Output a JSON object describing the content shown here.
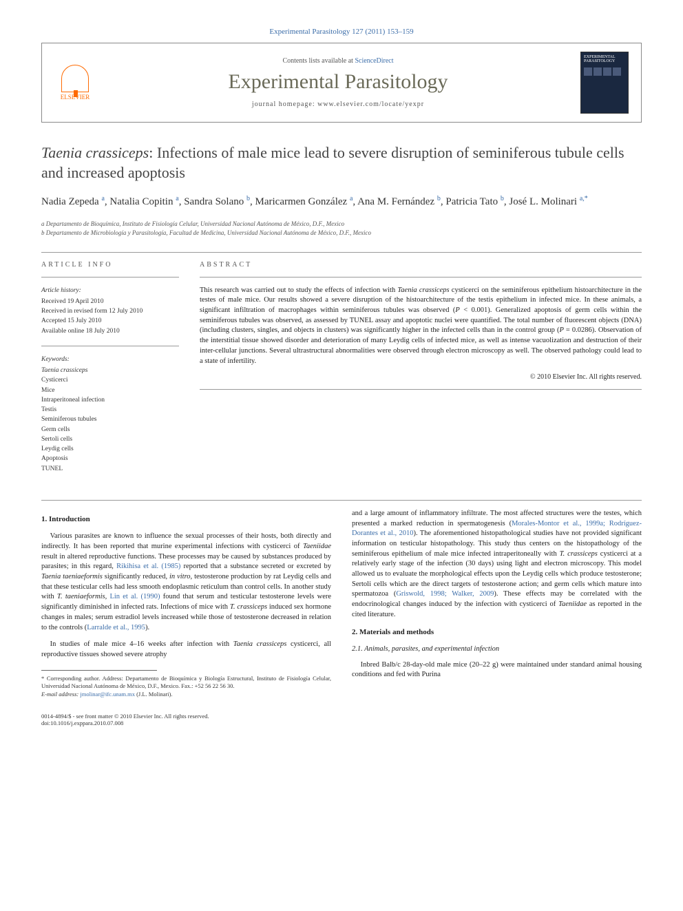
{
  "header": {
    "journal_citation": "Experimental Parasitology 127 (2011) 153–159",
    "contents_text": "Contents lists available at ",
    "contents_link": "ScienceDirect",
    "journal_title": "Experimental Parasitology",
    "homepage_text": "journal homepage: www.elsevier.com/locate/yexpr",
    "publisher": "ELSEVIER"
  },
  "article": {
    "title_html": "<em>Taenia crassiceps</em>: Infections of male mice lead to severe disruption of seminiferous tubule cells and increased apoptosis",
    "authors_html": "Nadia Zepeda <sup>a</sup>, Natalia Copitin <sup>a</sup>, Sandra Solano <sup>b</sup>, Maricarmen González <sup>a</sup>, Ana M. Fernández <sup>b</sup>, Patricia Tato <sup>b</sup>, José L. Molinari <sup>a,*</sup>",
    "affiliations": [
      "a Departamento de Bioquímica, Instituto de Fisiología Celular, Universidad Nacional Autónoma de México, D.F., Mexico",
      "b Departamento de Microbiología y Parasitología, Facultad de Medicina, Universidad Nacional Autónoma de México, D.F., Mexico"
    ]
  },
  "info": {
    "label": "ARTICLE INFO",
    "history_title": "Article history:",
    "history": [
      "Received 19 April 2010",
      "Received in revised form 12 July 2010",
      "Accepted 15 July 2010",
      "Available online 18 July 2010"
    ],
    "keywords_title": "Keywords:",
    "keywords": [
      "Taenia crassiceps",
      "Cysticerci",
      "Mice",
      "Intraperitoneal infection",
      "Testis",
      "Seminiferous tubules",
      "Germ cells",
      "Sertoli cells",
      "Leydig cells",
      "Apoptosis",
      "TUNEL"
    ]
  },
  "abstract": {
    "label": "ABSTRACT",
    "text_html": "This research was carried out to study the effects of infection with <em>Taenia crassiceps</em> cysticerci on the seminiferous epithelium histoarchitecture in the testes of male mice. Our results showed a severe disruption of the histoarchitecture of the testis epithelium in infected mice. In these animals, a significant infiltration of macrophages within seminiferous tubules was observed (<em>P</em> &lt; 0.001). Generalized apoptosis of germ cells within the seminiferous tubules was observed, as assessed by TUNEL assay and apoptotic nuclei were quantified. The total number of fluorescent objects (DNA) (including clusters, singles, and objects in clusters) was significantly higher in the infected cells than in the control group (<em>P</em> = 0.0286). Observation of the interstitial tissue showed disorder and deterioration of many Leydig cells of infected mice, as well as intense vacuolization and destruction of their inter-cellular junctions. Several ultrastructural abnormalities were observed through electron microscopy as well. The observed pathology could lead to a state of infertility.",
    "copyright": "© 2010 Elsevier Inc. All rights reserved."
  },
  "body": {
    "intro_heading": "1. Introduction",
    "intro_p1_html": "Various parasites are known to influence the sexual processes of their hosts, both directly and indirectly. It has been reported that murine experimental infections with cysticerci of <em>Taeniidae</em> result in altered reproductive functions. These processes may be caused by substances produced by parasites; in this regard, <span class='ref-link'>Rikihisa et al. (1985)</span> reported that a substance secreted or excreted by <em>Taenia taeniaeformis</em> significantly reduced, <em>in vitro</em>, testosterone production by rat Leydig cells and that these testicular cells had less smooth endoplasmic reticulum than control cells. In another study with <em>T. taeniaeformis</em>, <span class='ref-link'>Lin et al. (1990)</span> found that serum and testicular testosterone levels were significantly diminished in infected rats. Infections of mice with <em>T. crassiceps</em> induced sex hormone changes in males; serum estradiol levels increased while those of testosterone decreased in relation to the controls (<span class='ref-link'>Larralde et al., 1995</span>).",
    "intro_p2_html": "In studies of male mice 4–16 weeks after infection with <em>Taenia crassiceps</em> cysticerci, all reproductive tissues showed severe atrophy",
    "col2_p1_html": "and a large amount of inflammatory infiltrate. The most affected structures were the testes, which presented a marked reduction in spermatogenesis (<span class='ref-link'>Morales-Montor et al., 1999a; Rodríguez-Dorantes et al., 2010</span>). The aforementioned histopathological studies have not provided significant information on testicular histopathology. This study thus centers on the histopathology of the seminiferous epithelium of male mice infected intraperitoneally with <em>T. crassiceps</em> cysticerci at a relatively early stage of the infection (30 days) using light and electron microscopy. This model allowed us to evaluate the morphological effects upon the Leydig cells which produce testosterone; Sertoli cells which are the direct targets of testosterone action; and germ cells which mature into spermatozoa (<span class='ref-link'>Griswold, 1998; Walker, 2009</span>). These effects may be correlated with the endocrinological changes induced by the infection with cysticerci of <em>Taeniidae</em> as reported in the cited literature.",
    "methods_heading": "2. Materials and methods",
    "methods_sub1": "2.1. Animals, parasites, and experimental infection",
    "methods_p1": "Inbred Balb/c 28-day-old male mice (20–22 g) were maintained under standard animal housing conditions and fed with Purina"
  },
  "footnote": {
    "corresponding": "* Corresponding author. Address: Departamento de Bioquímica y Biología Estructural, Instituto de Fisiología Celular, Universidad Nacional Autónoma de México, D.F., Mexico. Fax.: +52 56 22 56 30.",
    "email_label": "E-mail address:",
    "email": "jmolinar@ifc.unam.mx",
    "email_name": "(J.L. Molinari)."
  },
  "footer": {
    "left_line1": "0014-4894/$ - see front matter © 2010 Elsevier Inc. All rights reserved.",
    "left_line2": "doi:10.1016/j.exppara.2010.07.008"
  },
  "colors": {
    "link": "#3a6ca8",
    "publisher": "#ff6a00",
    "journal_title": "#6a6a58"
  }
}
